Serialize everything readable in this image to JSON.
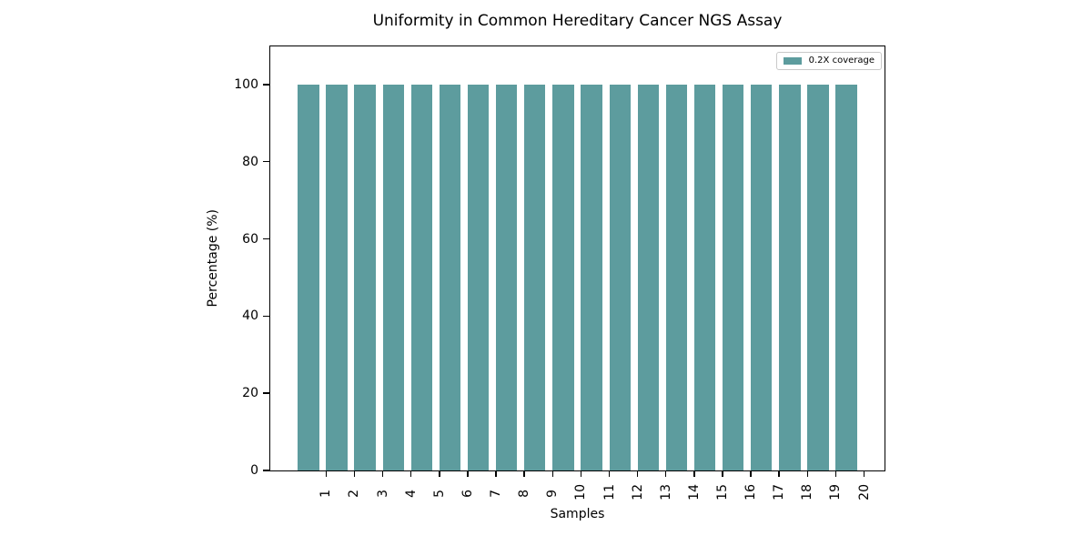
{
  "chart_data": {
    "type": "bar",
    "title": "Uniformity in Common Hereditary Cancer NGS Assay",
    "xlabel": "Samples",
    "ylabel": "Percentage (%)",
    "categories": [
      "1",
      "2",
      "3",
      "4",
      "5",
      "6",
      "7",
      "8",
      "9",
      "10",
      "11",
      "12",
      "13",
      "14",
      "15",
      "16",
      "17",
      "18",
      "19",
      "20"
    ],
    "series": [
      {
        "name": "0.2X coverage",
        "color": "#5d9c9e",
        "values": [
          100,
          100,
          100,
          100,
          100,
          100,
          100,
          100,
          100,
          100,
          100,
          100,
          100,
          100,
          100,
          100,
          100,
          100,
          100,
          100
        ]
      }
    ],
    "ylim": [
      0,
      110
    ],
    "yticks": [
      0,
      20,
      40,
      60,
      80,
      100
    ],
    "xlim": [
      -0.9875,
      20.7375
    ],
    "xtick_positions": [
      1,
      2,
      3,
      4,
      5,
      6,
      7,
      8,
      9,
      10,
      11,
      12,
      13,
      14,
      15,
      16,
      17,
      18,
      19,
      20
    ],
    "bar_left_edges": [
      0,
      1,
      2,
      3,
      4,
      5,
      6,
      7,
      8,
      9,
      10,
      11,
      12,
      13,
      14,
      15,
      16,
      17,
      18,
      19
    ],
    "bar_width": 0.75,
    "bar_align": "edge",
    "xtick_rotation": 90,
    "grid": false,
    "background_color": "#ffffff",
    "axis_color": "#000000",
    "legend": {
      "position": "upper right",
      "label": "0.2X coverage",
      "swatch_color": "#5d9c9e",
      "border_color": "#c9c9c9"
    }
  }
}
